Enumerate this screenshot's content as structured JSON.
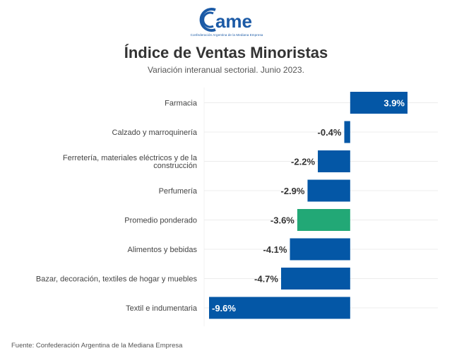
{
  "logo": {
    "text": "ame",
    "tagline": "Confederación Argentina de la Mediana Empresa",
    "color": "#1b5aa6"
  },
  "source": "Fuente: Confederación Argentina de la Mediana Empresa",
  "colors": {
    "bar": "#0457a6",
    "highlight": "#22a876",
    "grid": "#ececec",
    "label_dark": "#333333",
    "label_light": "#ffffff"
  },
  "chart_data": {
    "type": "bar",
    "orientation": "horizontal",
    "title": "Índice de Ventas Minoristas",
    "subtitle": "Variación interanual sectorial. Junio 2023.",
    "xlabel": "",
    "ylabel": "",
    "xlim": [
      -9.6,
      3.9
    ],
    "grid": true,
    "legend": "none",
    "categories": [
      "Farmacia",
      "Calzado y marroquinería",
      "Ferretería, materiales eléctricos y de la construcción",
      "Perfumería",
      "Promedio ponderado",
      "Alimentos y bebidas",
      "Bazar, decoración, textiles de hogar y muebles",
      "Textil e indumentaria"
    ],
    "category_lines": [
      [
        "Farmacia"
      ],
      [
        "Calzado y marroquinería"
      ],
      [
        "Ferretería, materiales eléctricos y de la",
        "construcción"
      ],
      [
        "Perfumería"
      ],
      [
        "Promedio ponderado"
      ],
      [
        "Alimentos y bebidas"
      ],
      [
        "Bazar, decoración, textiles de hogar y muebles"
      ],
      [
        "Textil e indumentaria"
      ]
    ],
    "values": [
      3.9,
      -0.4,
      -2.2,
      -2.9,
      -3.6,
      -4.1,
      -4.7,
      -9.6
    ],
    "value_labels": [
      "3.9%",
      "-0.4%",
      "-2.2%",
      "-2.9%",
      "-3.6%",
      "-4.1%",
      "-4.7%",
      "-9.6%"
    ],
    "highlight": [
      "Promedio ponderado"
    ]
  }
}
